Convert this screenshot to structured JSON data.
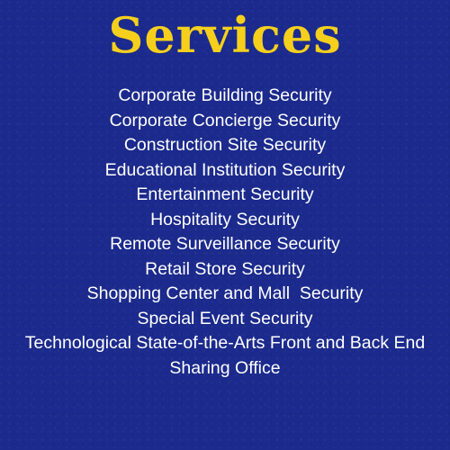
{
  "title": "Services",
  "colors": {
    "background": "#1b2a8c",
    "title": "#f5cf1c",
    "text": "#ffffff"
  },
  "services": [
    "Corporate Building Security",
    "Corporate Concierge Security",
    "Construction Site Security",
    "Educational Institution Security",
    "Entertainment Security",
    "Hospitality Security",
    "Remote Surveillance Security",
    "Retail Store Security",
    "Shopping Center and Mall  Security",
    "Special Event Security",
    "Technological State-of-the-Arts Front and Back End Sharing Office"
  ]
}
